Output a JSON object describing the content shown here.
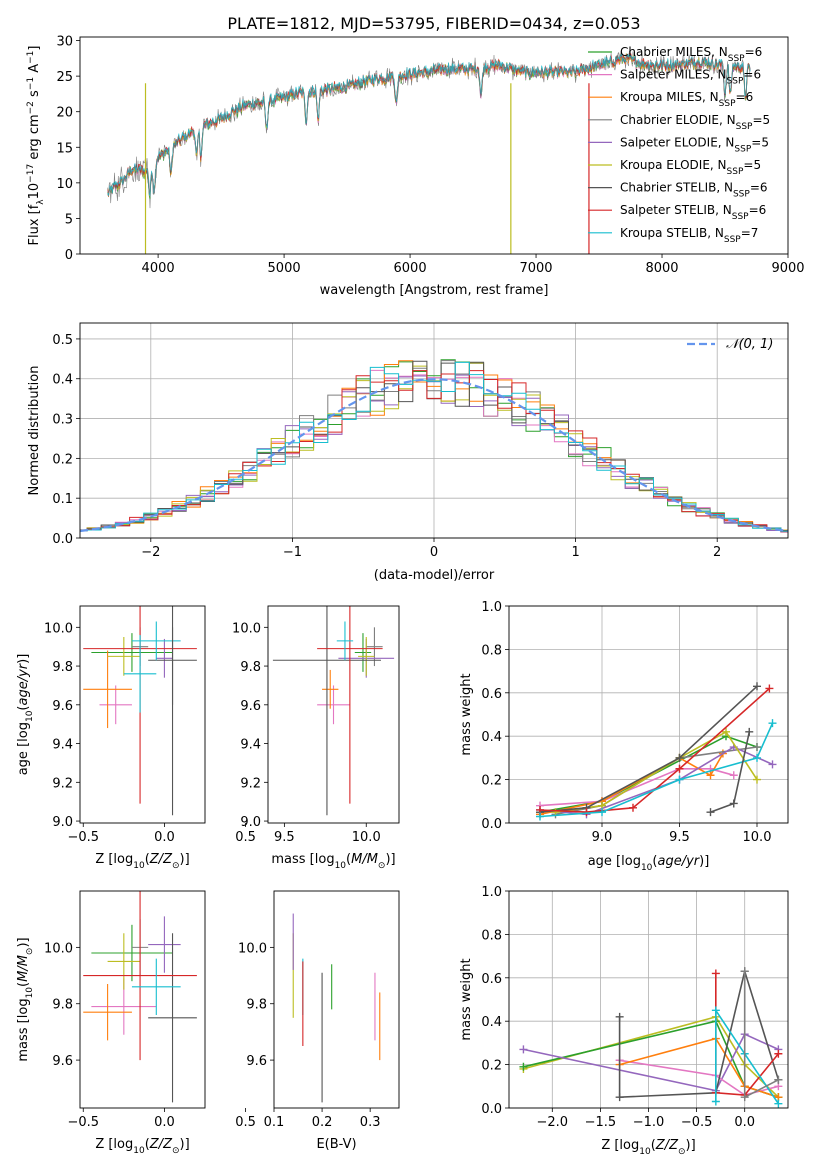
{
  "figure": {
    "title": "PLATE=1812, MJD=53795, FIBERID=0434, z=0.053"
  },
  "colors": {
    "Chabrier MILES": "#2ca02c",
    "Salpeter MILES": "#e377c2",
    "Kroupa MILES": "#ff7f0e",
    "Chabrier ELODIE": "#7f7f7f",
    "Salpeter ELODIE": "#9467bd",
    "Kroupa ELODIE": "#bcbd22",
    "Chabrier STELIB": "#555555",
    "Salpeter STELIB": "#d62728",
    "Kroupa STELIB": "#17becf"
  },
  "chart_data": [
    {
      "id": "spectrum",
      "type": "line",
      "title": "PLATE=1812, MJD=53795, FIBERID=0434, z=0.053",
      "xlabel": "wavelength [Angstrom, rest frame]",
      "ylabel": "Flux [f_λ10^-17 erg cm^-2 s^-1 A^-1]",
      "xlim": [
        3380,
        9000
      ],
      "ylim": [
        0,
        30.5
      ],
      "xticks": [
        4000,
        5000,
        6000,
        7000,
        8000,
        9000
      ],
      "yticks": [
        0,
        5,
        10,
        15,
        20,
        25,
        30
      ],
      "legend": {
        "position": "right",
        "entries": [
          {
            "model": "Chabrier MILES",
            "label": "Chabrier MILES, N",
            "sub": "SSP",
            "tail": "=6"
          },
          {
            "model": "Salpeter MILES",
            "label": "Salpeter MILES, N",
            "sub": "SSP",
            "tail": "=6"
          },
          {
            "model": "Kroupa MILES",
            "label": "Kroupa MILES, N",
            "sub": "SSP",
            "tail": "=6"
          },
          {
            "model": "Chabrier ELODIE",
            "label": "Chabrier ELODIE, N",
            "sub": "SSP",
            "tail": "=5"
          },
          {
            "model": "Salpeter ELODIE",
            "label": "Salpeter ELODIE, N",
            "sub": "SSP",
            "tail": "=5"
          },
          {
            "model": "Kroupa ELODIE",
            "label": "Kroupa ELODIE, N",
            "sub": "SSP",
            "tail": "=5"
          },
          {
            "model": "Chabrier STELIB",
            "label": "Chabrier STELIB, N",
            "sub": "SSP",
            "tail": "=6"
          },
          {
            "model": "Salpeter STELIB",
            "label": "Salpeter STELIB, N",
            "sub": "SSP",
            "tail": "=6"
          },
          {
            "model": "Kroupa STELIB",
            "label": "Kroupa STELIB, N",
            "sub": "SSP",
            "tail": "=7"
          }
        ]
      },
      "continuum": [
        [
          3600,
          8.5
        ],
        [
          3700,
          10
        ],
        [
          3800,
          12
        ],
        [
          3900,
          11.5
        ],
        [
          4000,
          13.5
        ],
        [
          4100,
          15
        ],
        [
          4300,
          17.5
        ],
        [
          4500,
          19
        ],
        [
          4700,
          21
        ],
        [
          4900,
          21.5
        ],
        [
          5100,
          22.5
        ],
        [
          5300,
          23
        ],
        [
          5500,
          23.5
        ],
        [
          5700,
          24.5
        ],
        [
          5900,
          25
        ],
        [
          6100,
          25.5
        ],
        [
          6300,
          26
        ],
        [
          6500,
          26
        ],
        [
          6700,
          26.5
        ],
        [
          6900,
          25.5
        ],
        [
          7100,
          25.5
        ],
        [
          7300,
          25.5
        ],
        [
          7500,
          26.5
        ],
        [
          7700,
          27.5
        ],
        [
          7900,
          26.5
        ],
        [
          8100,
          26.5
        ],
        [
          8300,
          27
        ],
        [
          8500,
          26.5
        ],
        [
          8700,
          26
        ]
      ]
    },
    {
      "id": "residuals",
      "type": "bar",
      "xlabel": "(data-model)/error",
      "ylabel": "Normed distribution",
      "xlim": [
        -2.5,
        2.5
      ],
      "ylim": [
        0,
        0.54
      ],
      "xticks": [
        -2,
        -1,
        0,
        1,
        2
      ],
      "yticks": [
        0.0,
        0.1,
        0.2,
        0.3,
        0.4,
        0.5
      ],
      "grid": true,
      "legend": {
        "position": "top-right",
        "label": "𝒩(0, 1)",
        "color": "#6495ed"
      }
    },
    {
      "id": "age_vs_Z",
      "type": "scatter",
      "xlabel": "Z [log10(Z/Z⊙)]",
      "ylabel": "age  [log10(age/yr)]",
      "xlim": [
        -0.52,
        0.25
      ],
      "ylim": [
        8.99,
        10.11
      ],
      "xticks": [
        -0.5,
        0.0,
        0.5
      ],
      "yticks": [
        9.0,
        9.2,
        9.4,
        9.6,
        9.8,
        10.0
      ],
      "points": [
        {
          "model": "Chabrier MILES",
          "x": -0.2,
          "xerr": 0.25,
          "y": 9.87,
          "yerr": 0.1
        },
        {
          "model": "Salpeter MILES",
          "x": -0.3,
          "xerr": 0.1,
          "y": 9.6,
          "yerr": 0.1
        },
        {
          "model": "Kroupa MILES",
          "x": -0.35,
          "xerr": 0.15,
          "y": 9.68,
          "yerr": 0.2
        },
        {
          "model": "Chabrier ELODIE",
          "x": -0.15,
          "xerr": 0.05,
          "y": 9.9,
          "yerr": 0.1
        },
        {
          "model": "Salpeter ELODIE",
          "x": 0.0,
          "xerr": 0.05,
          "y": 9.84,
          "yerr": 0.1
        },
        {
          "model": "Kroupa ELODIE",
          "x": -0.25,
          "xerr": 0.1,
          "y": 9.85,
          "yerr": 0.1
        },
        {
          "model": "Chabrier STELIB",
          "x": 0.05,
          "xerr": 0.15,
          "y": 9.83,
          "yerr": 0.8
        },
        {
          "model": "Salpeter STELIB",
          "x": -0.15,
          "xerr": 0.35,
          "y": 9.89,
          "yerr": 0.8
        },
        {
          "model": "Kroupa STELIB",
          "x": -0.05,
          "xerr": 0.15,
          "y": 9.93,
          "yerr": 0.1
        },
        {
          "model": "Chabrier STELIB",
          "x": 0.05,
          "xerr": 0.0,
          "y": 9.8,
          "yerr": 0.2
        },
        {
          "model": "Kroupa STELIB",
          "x": -0.15,
          "xerr": 0.1,
          "y": 9.76,
          "yerr": 0.2
        }
      ]
    },
    {
      "id": "age_vs_mass",
      "type": "scatter",
      "xlabel": "mass [log10(M/M⊙)]",
      "ylabel": "",
      "xlim": [
        9.4,
        10.2
      ],
      "ylim": [
        8.99,
        10.11
      ],
      "xticks": [
        9.5,
        10.0
      ],
      "yticks": [
        9.0,
        9.2,
        9.4,
        9.6,
        9.8,
        10.0
      ],
      "points": [
        {
          "model": "Chabrier MILES",
          "x": 9.98,
          "xerr": 0.05,
          "y": 9.87,
          "yerr": 0.1
        },
        {
          "model": "Salpeter MILES",
          "x": 9.8,
          "xerr": 0.1,
          "y": 9.6,
          "yerr": 0.1
        },
        {
          "model": "Kroupa MILES",
          "x": 9.78,
          "xerr": 0.05,
          "y": 9.68,
          "yerr": 0.1
        },
        {
          "model": "Chabrier ELODIE",
          "x": 10.05,
          "xerr": 0.05,
          "y": 9.9,
          "yerr": 0.1
        },
        {
          "model": "Salpeter ELODIE",
          "x": 10.0,
          "xerr": 0.17,
          "y": 9.84,
          "yerr": 0.1
        },
        {
          "model": "Kroupa ELODIE",
          "x": 10.0,
          "xerr": 0.05,
          "y": 9.85,
          "yerr": 0.1
        },
        {
          "model": "Chabrier STELIB",
          "x": 9.76,
          "xerr": 0.33,
          "y": 9.83,
          "yerr": 0.8
        },
        {
          "model": "Salpeter STELIB",
          "x": 9.9,
          "xerr": 0.2,
          "y": 9.89,
          "yerr": 0.8
        },
        {
          "model": "Kroupa STELIB",
          "x": 9.87,
          "xerr": 0.05,
          "y": 9.93,
          "yerr": 0.1
        }
      ]
    },
    {
      "id": "weight_vs_age",
      "type": "line",
      "xlabel": "age  [log10(age/yr)]",
      "ylabel": "mass weight",
      "xlim": [
        8.4,
        10.2
      ],
      "ylim": [
        0,
        1.0
      ],
      "xticks": [
        9.0,
        9.5,
        10.0
      ],
      "yticks": [
        0.0,
        0.2,
        0.4,
        0.6,
        0.8,
        1.0
      ],
      "grid": true,
      "series": [
        {
          "model": "Chabrier MILES",
          "x": [
            8.6,
            9.0,
            9.8,
            10.0
          ],
          "y": [
            0.05,
            0.1,
            0.4,
            0.35
          ]
        },
        {
          "model": "Salpeter MILES",
          "x": [
            8.6,
            9.0,
            9.5,
            9.7,
            9.85
          ],
          "y": [
            0.08,
            0.1,
            0.25,
            0.25,
            0.22
          ]
        },
        {
          "model": "Kroupa MILES",
          "x": [
            8.6,
            9.0,
            9.5,
            9.7,
            9.78
          ],
          "y": [
            0.04,
            0.1,
            0.3,
            0.22,
            0.32
          ]
        },
        {
          "model": "Chabrier ELODIE",
          "x": [
            8.7,
            9.0,
            9.5,
            10.0
          ],
          "y": [
            0.04,
            0.08,
            0.3,
            0.35
          ]
        },
        {
          "model": "Salpeter ELODIE",
          "x": [
            8.6,
            8.9,
            9.5,
            9.85,
            10.1
          ],
          "y": [
            0.06,
            0.04,
            0.2,
            0.35,
            0.27
          ]
        },
        {
          "model": "Kroupa ELODIE",
          "x": [
            8.7,
            9.0,
            9.5,
            9.8,
            10.0
          ],
          "y": [
            0.05,
            0.08,
            0.3,
            0.42,
            0.2
          ]
        },
        {
          "model": "Chabrier STELIB",
          "x": [
            8.6,
            8.9,
            9.5,
            10.0
          ],
          "y": [
            0.05,
            0.07,
            0.3,
            0.63
          ]
        },
        {
          "model": "Salpeter STELIB",
          "x": [
            8.6,
            8.9,
            9.2,
            9.5,
            10.08
          ],
          "y": [
            0.06,
            0.05,
            0.07,
            0.25,
            0.62
          ]
        },
        {
          "model": "Kroupa STELIB",
          "x": [
            8.6,
            9.0,
            9.5,
            10.0,
            10.1
          ],
          "y": [
            0.03,
            0.05,
            0.2,
            0.3,
            0.46
          ]
        },
        {
          "model": "Chabrier STELIB",
          "x": [
            9.7,
            9.85,
            9.95
          ],
          "y": [
            0.05,
            0.09,
            0.42
          ]
        }
      ]
    },
    {
      "id": "mass_vs_Z",
      "type": "scatter",
      "xlabel": "Z [log10(Z/Z⊙)]",
      "ylabel": "mass [log10(M/M⊙)]",
      "xlim": [
        -0.52,
        0.25
      ],
      "ylim": [
        9.43,
        10.2
      ],
      "xticks": [
        -0.5,
        0.0,
        0.5
      ],
      "yticks": [
        9.6,
        9.8,
        10.0
      ],
      "points": [
        {
          "model": "Chabrier MILES",
          "x": -0.2,
          "xerr": 0.25,
          "y": 9.98,
          "yerr": 0.1
        },
        {
          "model": "Salpeter MILES",
          "x": -0.25,
          "xerr": 0.2,
          "y": 9.79,
          "yerr": 0.1
        },
        {
          "model": "Kroupa MILES",
          "x": -0.35,
          "xerr": 0.15,
          "y": 9.77,
          "yerr": 0.1
        },
        {
          "model": "Chabrier ELODIE",
          "x": -0.15,
          "xerr": 0.05,
          "y": 10.0,
          "yerr": 0.1
        },
        {
          "model": "Salpeter ELODIE",
          "x": 0.0,
          "xerr": 0.1,
          "y": 10.01,
          "yerr": 0.1
        },
        {
          "model": "Kroupa ELODIE",
          "x": -0.25,
          "xerr": 0.1,
          "y": 9.95,
          "yerr": 0.1
        },
        {
          "model": "Chabrier STELIB",
          "x": 0.05,
          "xerr": 0.15,
          "y": 9.75,
          "yerr": 0.3
        },
        {
          "model": "Salpeter STELIB",
          "x": -0.15,
          "xerr": 0.35,
          "y": 9.9,
          "yerr": 0.3
        },
        {
          "model": "Kroupa STELIB",
          "x": -0.05,
          "xerr": 0.15,
          "y": 9.86,
          "yerr": 0.1
        }
      ]
    },
    {
      "id": "mass_vs_EBV",
      "type": "scatter",
      "xlabel": "E(B-V)",
      "ylabel": "",
      "xlim": [
        0.1,
        0.36
      ],
      "ylim": [
        9.43,
        10.2
      ],
      "xticks": [
        0.1,
        0.2,
        0.3
      ],
      "yticks": [
        9.6,
        9.8,
        10.0
      ],
      "points": [
        {
          "model": "Kroupa ELODIE",
          "x": 0.14,
          "y": 9.9,
          "yerr": 0.15
        },
        {
          "model": "Salpeter ELODIE",
          "x": 0.14,
          "y": 10.02,
          "yerr": 0.1
        },
        {
          "model": "Kroupa STELIB",
          "x": 0.16,
          "y": 9.86,
          "yerr": 0.1
        },
        {
          "model": "Salpeter STELIB",
          "x": 0.16,
          "y": 9.8,
          "yerr": 0.15
        },
        {
          "model": "Chabrier STELIB",
          "x": 0.2,
          "y": 9.68,
          "yerr": 0.23
        },
        {
          "model": "Chabrier MILES",
          "x": 0.22,
          "y": 9.86,
          "yerr": 0.08
        },
        {
          "model": "Salpeter MILES",
          "x": 0.31,
          "y": 9.79,
          "yerr": 0.12
        },
        {
          "model": "Kroupa MILES",
          "x": 0.32,
          "y": 9.72,
          "yerr": 0.12
        }
      ]
    },
    {
      "id": "weight_vs_Z",
      "type": "line",
      "xlabel": "Z [log10(Z/Z⊙)]",
      "ylabel": "mass weight",
      "xlim": [
        -2.45,
        0.45
      ],
      "ylim": [
        0,
        1.0
      ],
      "xticks": [
        -2.0,
        -1.5,
        -1.0,
        -0.5,
        0.0
      ],
      "yticks": [
        0.0,
        0.2,
        0.4,
        0.6,
        0.8,
        1.0
      ],
      "grid": true,
      "series": [
        {
          "model": "Kroupa ELODIE",
          "x": [
            -2.3,
            -0.3,
            0.0,
            0.35
          ],
          "y": [
            0.18,
            0.42,
            0.2,
            0.05
          ]
        },
        {
          "model": "Chabrier MILES",
          "x": [
            -2.3,
            -0.3,
            0.0,
            0.35
          ],
          "y": [
            0.19,
            0.4,
            0.1,
            0.05
          ]
        },
        {
          "model": "Salpeter ELODIE",
          "x": [
            -2.3,
            -0.3,
            0.0,
            0.35
          ],
          "y": [
            0.27,
            0.08,
            0.34,
            0.27
          ]
        },
        {
          "model": "Salpeter MILES",
          "x": [
            -1.3,
            -0.3,
            0.0,
            0.35
          ],
          "y": [
            0.22,
            0.15,
            0.06,
            0.1
          ]
        },
        {
          "model": "Kroupa MILES",
          "x": [
            -1.3,
            -0.3,
            0.0,
            0.35
          ],
          "y": [
            0.2,
            0.32,
            0.1,
            0.05
          ]
        },
        {
          "model": "Chabrier STELIB",
          "x": [
            -1.3,
            -1.3,
            -0.3,
            0.0,
            0.35
          ],
          "y": [
            0.42,
            0.05,
            0.07,
            0.63,
            0.13
          ]
        },
        {
          "model": "Salpeter STELIB",
          "x": [
            -0.3,
            -0.3,
            0.0,
            0.35
          ],
          "y": [
            0.62,
            0.07,
            0.06,
            0.25
          ]
        },
        {
          "model": "Kroupa STELIB",
          "x": [
            -0.3,
            -0.3,
            0.0,
            0.35
          ],
          "y": [
            0.03,
            0.45,
            0.25,
            0.02
          ]
        },
        {
          "model": "Chabrier ELODIE",
          "x": [
            0.0,
            0.0,
            0.35
          ],
          "y": [
            0.63,
            0.05,
            0.13
          ]
        }
      ]
    }
  ]
}
